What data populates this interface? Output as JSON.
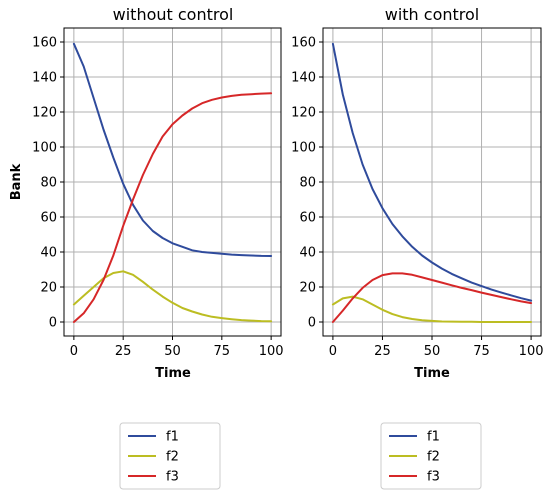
{
  "chart_data": [
    {
      "type": "line",
      "title": "without control",
      "xlabel": "Time",
      "ylabel": "Bank",
      "xlim": [
        -5,
        105
      ],
      "ylim": [
        -8,
        168
      ],
      "xticks": [
        0,
        25,
        50,
        75,
        100
      ],
      "yticks": [
        0,
        20,
        40,
        60,
        80,
        100,
        120,
        140,
        160
      ],
      "grid": true,
      "x": [
        0,
        5,
        10,
        15,
        20,
        25,
        30,
        35,
        40,
        45,
        50,
        55,
        60,
        65,
        70,
        75,
        80,
        85,
        90,
        95,
        100
      ],
      "series": [
        {
          "name": "f1",
          "color": "#2f4b9c",
          "values": [
            159,
            146,
            128,
            110,
            94,
            79,
            67,
            58,
            52,
            48,
            45,
            43,
            41,
            40,
            39.5,
            39,
            38.5,
            38.2,
            38,
            37.8,
            37.7
          ]
        },
        {
          "name": "f2",
          "color": "#bcbd22",
          "values": [
            10,
            15,
            20,
            25,
            28,
            29,
            27,
            23,
            18.5,
            14.5,
            11,
            8,
            6,
            4.3,
            3,
            2.2,
            1.6,
            1.1,
            0.8,
            0.5,
            0.4
          ]
        },
        {
          "name": "f3",
          "color": "#d62728",
          "values": [
            0,
            5,
            13,
            24,
            38,
            55,
            70,
            84,
            96,
            106,
            113,
            118,
            122,
            125,
            127,
            128.3,
            129.2,
            129.8,
            130.2,
            130.5,
            130.7
          ]
        }
      ]
    },
    {
      "type": "line",
      "title": "with control",
      "xlabel": "Time",
      "ylabel": "",
      "xlim": [
        -5,
        105
      ],
      "ylim": [
        -8,
        168
      ],
      "xticks": [
        0,
        25,
        50,
        75,
        100
      ],
      "yticks": [
        0,
        20,
        40,
        60,
        80,
        100,
        120,
        140,
        160
      ],
      "grid": true,
      "x": [
        0,
        5,
        10,
        15,
        20,
        25,
        30,
        35,
        40,
        45,
        50,
        55,
        60,
        65,
        70,
        75,
        80,
        85,
        90,
        95,
        100
      ],
      "series": [
        {
          "name": "f1",
          "color": "#2f4b9c",
          "values": [
            159,
            130,
            108,
            90,
            76,
            65,
            56,
            49,
            43,
            38,
            34,
            30.5,
            27.5,
            25,
            22.5,
            20.5,
            18.5,
            16.8,
            15.2,
            13.6,
            12.2
          ]
        },
        {
          "name": "f2",
          "color": "#bcbd22",
          "values": [
            10,
            13.5,
            14.5,
            13,
            10,
            7,
            4.5,
            2.8,
            1.7,
            1,
            0.6,
            0.3,
            0.2,
            0.1,
            0.1,
            0,
            0,
            0,
            0,
            0,
            0
          ]
        },
        {
          "name": "f3",
          "color": "#d62728",
          "values": [
            0,
            6.5,
            13.5,
            19.5,
            24,
            26.8,
            27.8,
            27.8,
            27,
            25.5,
            24,
            22.5,
            21,
            19.5,
            18.2,
            16.8,
            15.5,
            14.2,
            13,
            11.8,
            10.8
          ]
        }
      ]
    }
  ],
  "legends": [
    {
      "entries": [
        "f1",
        "f2",
        "f3"
      ]
    },
    {
      "entries": [
        "f1",
        "f2",
        "f3"
      ]
    }
  ]
}
